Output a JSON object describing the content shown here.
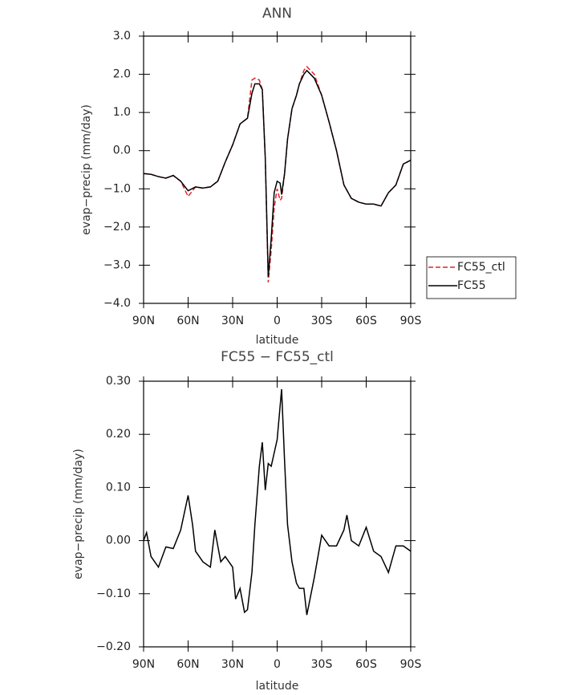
{
  "chart_data": [
    {
      "type": "line",
      "title": "ANN",
      "xlabel": "latitude",
      "ylabel": "evap−precip (mm/day)",
      "x": [
        90,
        85,
        80,
        75,
        70,
        65,
        60,
        55,
        50,
        45,
        40,
        35,
        30,
        25,
        20,
        17,
        15,
        12,
        10,
        8,
        6,
        4,
        2,
        0,
        -2,
        -3,
        -5,
        -7,
        -10,
        -13,
        -15,
        -18,
        -20,
        -25,
        -30,
        -35,
        -40,
        -45,
        -50,
        -55,
        -60,
        -65,
        -70,
        -75,
        -80,
        -85,
        -90
      ],
      "series": [
        {
          "name": "FC55_ctl",
          "color": "#e0242c",
          "dash": true,
          "values": [
            -0.6,
            -0.62,
            -0.68,
            -0.72,
            -0.65,
            -0.8,
            -1.2,
            -0.95,
            -0.98,
            -0.95,
            -0.8,
            -0.3,
            0.15,
            0.7,
            0.85,
            1.85,
            1.9,
            1.85,
            1.6,
            -0.2,
            -3.45,
            -2.6,
            -1.5,
            -1.0,
            -1.3,
            -1.25,
            -0.6,
            0.3,
            1.1,
            1.45,
            1.75,
            2.1,
            2.2,
            2.0,
            1.45,
            0.75,
            0.0,
            -0.9,
            -1.25,
            -1.35,
            -1.4,
            -1.4,
            -1.45,
            -1.1,
            -0.9,
            -0.35,
            -0.25
          ]
        },
        {
          "name": "FC55",
          "color": "#000000",
          "dash": false,
          "values": [
            -0.6,
            -0.62,
            -0.68,
            -0.72,
            -0.65,
            -0.8,
            -1.05,
            -0.95,
            -0.98,
            -0.95,
            -0.8,
            -0.3,
            0.15,
            0.7,
            0.85,
            1.5,
            1.75,
            1.75,
            1.6,
            -0.2,
            -3.3,
            -2.3,
            -1.1,
            -0.8,
            -0.85,
            -1.15,
            -0.6,
            0.3,
            1.1,
            1.45,
            1.75,
            2.0,
            2.1,
            1.9,
            1.45,
            0.75,
            0.0,
            -0.9,
            -1.25,
            -1.35,
            -1.4,
            -1.4,
            -1.45,
            -1.1,
            -0.9,
            -0.35,
            -0.25
          ]
        }
      ],
      "xlim": [
        90,
        -90
      ],
      "xticks": [
        {
          "value": 90,
          "label": "90N"
        },
        {
          "value": 60,
          "label": "60N"
        },
        {
          "value": 30,
          "label": "30N"
        },
        0,
        {
          "value": -30,
          "label": "30S"
        },
        {
          "value": -60,
          "label": "60S"
        },
        {
          "value": -90,
          "label": "90S"
        }
      ],
      "ylim": [
        -4,
        3
      ],
      "yticks": [
        {
          "value": 3,
          "label": "3.0"
        },
        {
          "value": 2,
          "label": "2.0"
        },
        {
          "value": 1,
          "label": "1.0"
        },
        {
          "value": 0,
          "label": "0.0"
        },
        {
          "value": -1,
          "label": "−1.0"
        },
        {
          "value": -2,
          "label": "−2.0"
        },
        {
          "value": -3,
          "label": "−3.0"
        },
        {
          "value": -4,
          "label": "−4.0"
        }
      ],
      "legend": "right"
    },
    {
      "type": "line",
      "title": "FC55 − FC55_ctl",
      "xlabel": "latitude",
      "ylabel": "evap−precip (mm/day)",
      "x": [
        90,
        88,
        85,
        80,
        75,
        70,
        65,
        60,
        57,
        55,
        50,
        45,
        42,
        38,
        35,
        30,
        28,
        25,
        22,
        20,
        17,
        15,
        12,
        10,
        8,
        6,
        4,
        2,
        0,
        -3,
        -5,
        -7,
        -10,
        -13,
        -15,
        -18,
        -20,
        -25,
        -30,
        -35,
        -40,
        -45,
        -47,
        -50,
        -55,
        -60,
        -65,
        -70,
        -75,
        -80,
        -85,
        -90
      ],
      "series": [
        {
          "color": "#000000",
          "dash": false,
          "values": [
            0.0,
            0.015,
            -0.03,
            -0.05,
            -0.012,
            -0.015,
            0.02,
            0.085,
            0.03,
            -0.02,
            -0.04,
            -0.05,
            0.02,
            -0.04,
            -0.03,
            -0.05,
            -0.11,
            -0.09,
            -0.135,
            -0.13,
            -0.06,
            0.03,
            0.14,
            0.185,
            0.095,
            0.145,
            0.14,
            0.165,
            0.19,
            0.285,
            0.15,
            0.03,
            -0.04,
            -0.08,
            -0.09,
            -0.09,
            -0.14,
            -0.07,
            0.01,
            -0.01,
            -0.01,
            0.02,
            0.048,
            0.0,
            -0.01,
            0.025,
            -0.02,
            -0.03,
            -0.06,
            -0.01,
            -0.01,
            -0.02
          ]
        }
      ],
      "xlim": [
        90,
        -90
      ],
      "xticks": [
        {
          "value": 90,
          "label": "90N"
        },
        {
          "value": 60,
          "label": "60N"
        },
        {
          "value": 30,
          "label": "30N"
        },
        0,
        {
          "value": -30,
          "label": "30S"
        },
        {
          "value": -60,
          "label": "60S"
        },
        {
          "value": -90,
          "label": "90S"
        }
      ],
      "ylim": [
        -0.2,
        0.3
      ],
      "yticks": [
        {
          "value": 0.3,
          "label": "0.30"
        },
        {
          "value": 0.2,
          "label": "0.20"
        },
        {
          "value": 0.1,
          "label": "0.10"
        },
        {
          "value": 0,
          "label": "0.00"
        },
        {
          "value": -0.1,
          "label": "−0.10"
        },
        {
          "value": -0.2,
          "label": "−0.20"
        }
      ]
    }
  ]
}
